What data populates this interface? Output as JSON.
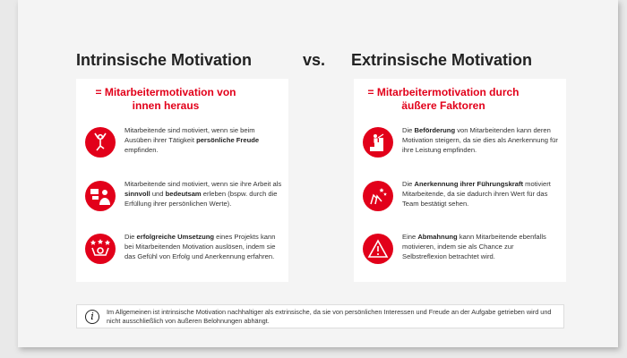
{
  "accent": "#e2001a",
  "left": {
    "title": "Intrinsische Motivation",
    "subtitle_line1": "= Mitarbeitermotivation von",
    "subtitle_line2": "innen heraus",
    "items": [
      {
        "icon": "joyful-person-icon",
        "segments": [
          {
            "t": "Mitarbeitende sind motiviert, wenn sie beim Ausüben ihrer Tätigkeit "
          },
          {
            "t": "persönliche Freude",
            "b": true
          },
          {
            "t": " empfinden."
          }
        ]
      },
      {
        "icon": "meaningful-work-icon",
        "segments": [
          {
            "t": "Mitarbeitende sind motiviert, wenn sie ihre Arbeit als "
          },
          {
            "t": "sinnvoll",
            "b": true
          },
          {
            "t": " und "
          },
          {
            "t": "bedeutsam",
            "b": true
          },
          {
            "t": " erleben (bspw. durch die Erfüllung ihrer persönlichen Werte)."
          }
        ]
      },
      {
        "icon": "success-stars-icon",
        "segments": [
          {
            "t": "Die "
          },
          {
            "t": "erfolgreiche Umsetzung",
            "b": true
          },
          {
            "t": " eines Projekts kann bei Mitarbeitenden Motivation auslösen, indem sie das Gefühl von Erfolg und Anerkennung erfahren."
          }
        ]
      }
    ]
  },
  "vs": "vs.",
  "right": {
    "title": "Extrinsische Motivation",
    "subtitle_line1": "= Mitarbeitermotivation durch",
    "subtitle_line2": "äußere Faktoren",
    "items": [
      {
        "icon": "promotion-stairs-icon",
        "segments": [
          {
            "t": "Die "
          },
          {
            "t": "Beförderung",
            "b": true
          },
          {
            "t": " von Mitarbeitenden kann deren Motivation steigern, da sie dies als Anerkennung für ihre Leistung empfinden."
          }
        ]
      },
      {
        "icon": "applause-hands-icon",
        "segments": [
          {
            "t": "Die "
          },
          {
            "t": "Anerkennung ihrer Führungskraft",
            "b": true
          },
          {
            "t": " motiviert Mitarbeitende, da sie dadurch ihren Wert für das Team bestätigt sehen."
          }
        ]
      },
      {
        "icon": "warning-icon",
        "segments": [
          {
            "t": "Eine "
          },
          {
            "t": "Abmahnung",
            "b": true
          },
          {
            "t": " kann Mitarbeitende ebenfalls motivieren, indem sie als Chance zur Selbstreflexion betrachtet wird."
          }
        ]
      }
    ]
  },
  "info": {
    "icon": "info-icon",
    "symbol": "i",
    "text": "Im Allgemeinen ist intrinsische Motivation nachhaltiger als extrinsische, da sie von persönlichen Interessen und Freude an der Aufgabe getrieben wird und nicht ausschließlich von äußeren Belohnungen abhängt."
  }
}
